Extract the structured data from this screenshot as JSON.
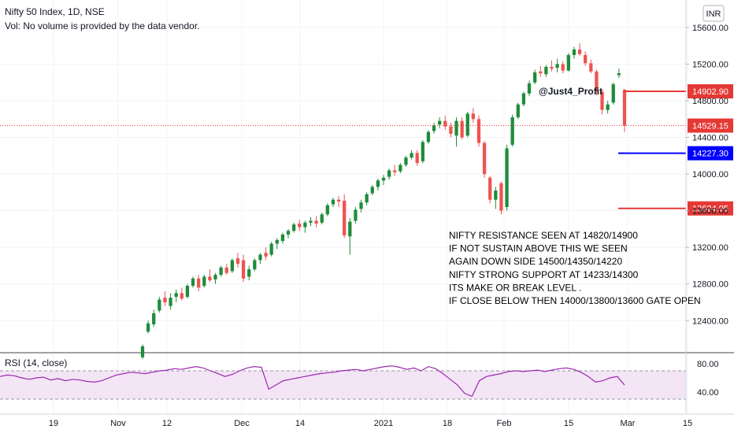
{
  "header": {
    "title": "Nifty 50 Index, 1D, NSE",
    "volume_note": "Vol: No volume is provided by the data vendor.",
    "currency_badge": "INR"
  },
  "watermark": "@Just4_Profit",
  "annotation_lines": [
    "NIFTY RESISTANCE SEEN AT 14820/14900",
    "IF NOT SUSTAIN ABOVE THIS WE SEEN",
    "AGAIN DOWN SIDE 14500/14350/14220",
    "NIFTY STRONG SUPPORT AT 14233/14300",
    "ITS MAKE OR BREAK LEVEL .",
    "IF CLOSE BELOW THEN 14000/13800/13600 GATE OPEN"
  ],
  "rsi": {
    "label": "RSI (14, close)",
    "ticks": [
      "80.00",
      "40.00"
    ]
  },
  "colors": {
    "up": "#26a69a",
    "candle_up": "#1e8c3a",
    "down": "#ef5350",
    "resistance": "#e53935",
    "support": "#0000ff",
    "rsi_line": "#9c27b0",
    "rsi_band": "#f3e5f5"
  },
  "chart_data": {
    "type": "candlestick",
    "symbol": "Nifty 50 Index",
    "interval": "1D",
    "y_ticks": [
      15600,
      15200,
      14800,
      14400,
      14000,
      13600,
      13200,
      12800,
      12400
    ],
    "y_tick_labels": [
      "15600.00",
      "15200.00",
      "14800.00",
      "14400.00",
      "14000.00",
      "13600.00",
      "13200.00",
      "12800.00",
      "12400.00"
    ],
    "ylim": [
      12050,
      15900
    ],
    "x_tick_labels": [
      "19",
      "Nov",
      "12",
      "Dec",
      "14",
      "2021",
      "18",
      "Feb",
      "15",
      "Mar",
      "15"
    ],
    "price_levels": [
      {
        "label": "14902.90",
        "value": 14902.9,
        "color": "#e53935"
      },
      {
        "label": "14529.15",
        "value": 14529.15,
        "color": "#e53935"
      },
      {
        "label": "14227.30",
        "value": 14227.3,
        "color": "#0000ff"
      },
      {
        "label": "13624.95",
        "value": 13624.95,
        "color": "#e53935"
      }
    ],
    "candles": [
      {
        "o": 12000,
        "h": 12140,
        "l": 11980,
        "c": 12120
      },
      {
        "o": 12280,
        "h": 12400,
        "l": 12260,
        "c": 12370
      },
      {
        "o": 12360,
        "h": 12520,
        "l": 12330,
        "c": 12480
      },
      {
        "o": 12510,
        "h": 12660,
        "l": 12490,
        "c": 12630
      },
      {
        "o": 12650,
        "h": 12720,
        "l": 12560,
        "c": 12600
      },
      {
        "o": 12560,
        "h": 12700,
        "l": 12520,
        "c": 12650
      },
      {
        "o": 12660,
        "h": 12740,
        "l": 12600,
        "c": 12700
      },
      {
        "o": 12700,
        "h": 12760,
        "l": 12620,
        "c": 12640
      },
      {
        "o": 12660,
        "h": 12800,
        "l": 12640,
        "c": 12780
      },
      {
        "o": 12780,
        "h": 12880,
        "l": 12760,
        "c": 12860
      },
      {
        "o": 12860,
        "h": 12900,
        "l": 12720,
        "c": 12760
      },
      {
        "o": 12780,
        "h": 12900,
        "l": 12760,
        "c": 12880
      },
      {
        "o": 12880,
        "h": 12960,
        "l": 12820,
        "c": 12840
      },
      {
        "o": 12850,
        "h": 12920,
        "l": 12800,
        "c": 12900
      },
      {
        "o": 12900,
        "h": 13000,
        "l": 12880,
        "c": 12980
      },
      {
        "o": 12980,
        "h": 13020,
        "l": 12900,
        "c": 12920
      },
      {
        "o": 12940,
        "h": 13080,
        "l": 12920,
        "c": 13060
      },
      {
        "o": 13080,
        "h": 13140,
        "l": 12980,
        "c": 13020
      },
      {
        "o": 13060,
        "h": 13120,
        "l": 12820,
        "c": 12860
      },
      {
        "o": 12880,
        "h": 13000,
        "l": 12840,
        "c": 12960
      },
      {
        "o": 12960,
        "h": 13080,
        "l": 12940,
        "c": 13060
      },
      {
        "o": 13060,
        "h": 13140,
        "l": 13020,
        "c": 13120
      },
      {
        "o": 13140,
        "h": 13200,
        "l": 13060,
        "c": 13100
      },
      {
        "o": 13120,
        "h": 13260,
        "l": 13100,
        "c": 13240
      },
      {
        "o": 13240,
        "h": 13300,
        "l": 13180,
        "c": 13280
      },
      {
        "o": 13270,
        "h": 13360,
        "l": 13240,
        "c": 13340
      },
      {
        "o": 13340,
        "h": 13400,
        "l": 13300,
        "c": 13380
      },
      {
        "o": 13380,
        "h": 13470,
        "l": 13360,
        "c": 13450
      },
      {
        "o": 13460,
        "h": 13500,
        "l": 13380,
        "c": 13420
      },
      {
        "o": 13420,
        "h": 13490,
        "l": 13360,
        "c": 13470
      },
      {
        "o": 13470,
        "h": 13530,
        "l": 13430,
        "c": 13490
      },
      {
        "o": 13490,
        "h": 13540,
        "l": 13420,
        "c": 13460
      },
      {
        "o": 13470,
        "h": 13580,
        "l": 13450,
        "c": 13560
      },
      {
        "o": 13560,
        "h": 13680,
        "l": 13540,
        "c": 13660
      },
      {
        "o": 13670,
        "h": 13740,
        "l": 13640,
        "c": 13720
      },
      {
        "o": 13720,
        "h": 13760,
        "l": 13640,
        "c": 13700
      },
      {
        "o": 13710,
        "h": 13780,
        "l": 13300,
        "c": 13330
      },
      {
        "o": 13320,
        "h": 13520,
        "l": 13120,
        "c": 13480
      },
      {
        "o": 13490,
        "h": 13640,
        "l": 13460,
        "c": 13610
      },
      {
        "o": 13620,
        "h": 13720,
        "l": 13580,
        "c": 13690
      },
      {
        "o": 13690,
        "h": 13800,
        "l": 13660,
        "c": 13780
      },
      {
        "o": 13790,
        "h": 13880,
        "l": 13770,
        "c": 13860
      },
      {
        "o": 13860,
        "h": 13950,
        "l": 13820,
        "c": 13930
      },
      {
        "o": 13930,
        "h": 13990,
        "l": 13880,
        "c": 13960
      },
      {
        "o": 13970,
        "h": 14060,
        "l": 13940,
        "c": 14040
      },
      {
        "o": 14040,
        "h": 14100,
        "l": 13980,
        "c": 14020
      },
      {
        "o": 14030,
        "h": 14120,
        "l": 14010,
        "c": 14100
      },
      {
        "o": 14100,
        "h": 14200,
        "l": 14080,
        "c": 14180
      },
      {
        "o": 14180,
        "h": 14260,
        "l": 14160,
        "c": 14230
      },
      {
        "o": 14230,
        "h": 14260,
        "l": 14090,
        "c": 14120
      },
      {
        "o": 14140,
        "h": 14370,
        "l": 14120,
        "c": 14350
      },
      {
        "o": 14350,
        "h": 14480,
        "l": 14330,
        "c": 14460
      },
      {
        "o": 14470,
        "h": 14560,
        "l": 14440,
        "c": 14530
      },
      {
        "o": 14540,
        "h": 14620,
        "l": 14500,
        "c": 14580
      },
      {
        "o": 14580,
        "h": 14640,
        "l": 14480,
        "c": 14520
      },
      {
        "o": 14520,
        "h": 14560,
        "l": 14400,
        "c": 14440
      },
      {
        "o": 14420,
        "h": 14620,
        "l": 14300,
        "c": 14580
      },
      {
        "o": 14580,
        "h": 14620,
        "l": 14380,
        "c": 14400
      },
      {
        "o": 14420,
        "h": 14680,
        "l": 14400,
        "c": 14660
      },
      {
        "o": 14660,
        "h": 14720,
        "l": 14560,
        "c": 14600
      },
      {
        "o": 14600,
        "h": 14640,
        "l": 14300,
        "c": 14340
      },
      {
        "o": 14340,
        "h": 14360,
        "l": 13960,
        "c": 14000
      },
      {
        "o": 13960,
        "h": 13980,
        "l": 13680,
        "c": 13720
      },
      {
        "o": 13720,
        "h": 13860,
        "l": 13620,
        "c": 13820
      },
      {
        "o": 13900,
        "h": 13920,
        "l": 13560,
        "c": 13600
      },
      {
        "o": 13640,
        "h": 14320,
        "l": 13600,
        "c": 14280
      },
      {
        "o": 14320,
        "h": 14650,
        "l": 14300,
        "c": 14620
      },
      {
        "o": 14620,
        "h": 14780,
        "l": 14600,
        "c": 14760
      },
      {
        "o": 14760,
        "h": 14900,
        "l": 14740,
        "c": 14880
      },
      {
        "o": 14880,
        "h": 15020,
        "l": 14850,
        "c": 14990
      },
      {
        "o": 15000,
        "h": 15140,
        "l": 14980,
        "c": 15110
      },
      {
        "o": 15120,
        "h": 15180,
        "l": 15060,
        "c": 15100
      },
      {
        "o": 15090,
        "h": 15190,
        "l": 15060,
        "c": 15170
      },
      {
        "o": 15170,
        "h": 15240,
        "l": 15120,
        "c": 15150
      },
      {
        "o": 15160,
        "h": 15260,
        "l": 15110,
        "c": 15200
      },
      {
        "o": 15200,
        "h": 15230,
        "l": 15100,
        "c": 15130
      },
      {
        "o": 15130,
        "h": 15320,
        "l": 15120,
        "c": 15300
      },
      {
        "o": 15300,
        "h": 15390,
        "l": 15260,
        "c": 15360
      },
      {
        "o": 15360,
        "h": 15430,
        "l": 15290,
        "c": 15310
      },
      {
        "o": 15300,
        "h": 15340,
        "l": 15180,
        "c": 15210
      },
      {
        "o": 15210,
        "h": 15250,
        "l": 15100,
        "c": 15120
      },
      {
        "o": 15120,
        "h": 15140,
        "l": 14860,
        "c": 14900
      },
      {
        "o": 14900,
        "h": 14920,
        "l": 14650,
        "c": 14700
      },
      {
        "o": 14700,
        "h": 14800,
        "l": 14660,
        "c": 14760
      },
      {
        "o": 14780,
        "h": 15000,
        "l": 14760,
        "c": 14980
      },
      {
        "o": 15080,
        "h": 15150,
        "l": 15050,
        "c": 15100
      },
      {
        "o": 14920,
        "h": 14930,
        "l": 14460,
        "c": 14529
      }
    ],
    "rsi_values": [
      62,
      64,
      63,
      60,
      58,
      60,
      61,
      57,
      59,
      56,
      58,
      57,
      55,
      54,
      56,
      60,
      64,
      66,
      68,
      67,
      66,
      68,
      70,
      71,
      73,
      72,
      74,
      76,
      74,
      70,
      66,
      62,
      65,
      70,
      74,
      76,
      75,
      44,
      50,
      56,
      58,
      60,
      62,
      64,
      66,
      67,
      68,
      70,
      71,
      72,
      70,
      72,
      74,
      76,
      77,
      75,
      72,
      74,
      70,
      76,
      73,
      66,
      58,
      50,
      38,
      34,
      56,
      62,
      64,
      66,
      69,
      70,
      69,
      70,
      71,
      69,
      71,
      73,
      74,
      72,
      68,
      62,
      54,
      56,
      60,
      62,
      50
    ]
  }
}
